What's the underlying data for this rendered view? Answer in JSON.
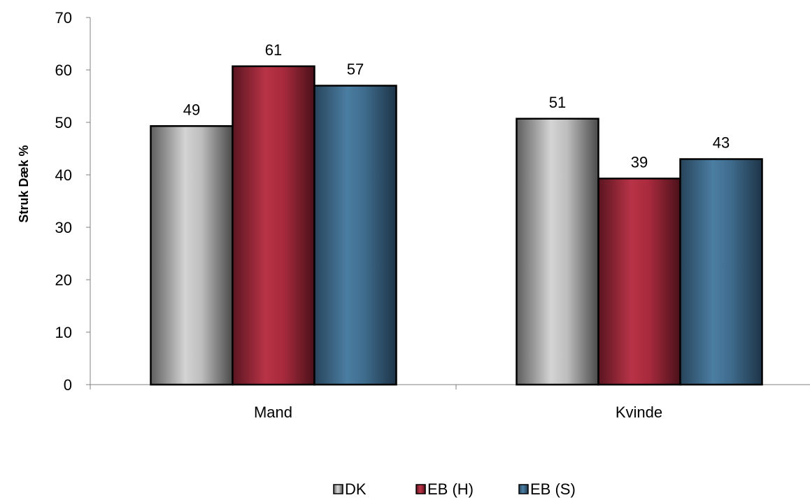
{
  "chart_data": {
    "type": "bar",
    "categories": [
      "Mand",
      "Kvinde"
    ],
    "series": [
      {
        "name": "DK",
        "values": [
          49.3,
          50.7
        ],
        "labels": [
          "49",
          "51"
        ],
        "color": "#a9a9a9"
      },
      {
        "name": "EB (H)",
        "values": [
          60.7,
          39.3
        ],
        "labels": [
          "61",
          "39"
        ],
        "color": "#a82a3c"
      },
      {
        "name": "EB (S)",
        "values": [
          57.0,
          43.0
        ],
        "labels": [
          "57",
          "43"
        ],
        "color": "#3e6b8c"
      }
    ],
    "title": "",
    "xlabel": "",
    "ylabel": "Struk Dæk %",
    "ylim": [
      0,
      70
    ],
    "yticks": [
      0,
      10,
      20,
      30,
      40,
      50,
      60,
      70
    ],
    "grid": false,
    "legend": "bottom"
  }
}
